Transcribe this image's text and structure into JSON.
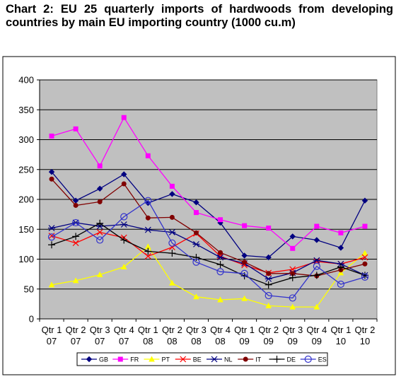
{
  "chart_data": {
    "type": "line",
    "title": "Chart 2: EU 25 quarterly imports of hardwoods from developing countries by main EU importing country (1000 cu.m)",
    "categories": [
      [
        "Qtr 1",
        "07"
      ],
      [
        "Qtr 2",
        "07"
      ],
      [
        "Qtr 3",
        "07"
      ],
      [
        "Qtr 4",
        "07"
      ],
      [
        "Qtr 1",
        "08"
      ],
      [
        "Qtr 2",
        "08"
      ],
      [
        "Qtr 3",
        "08"
      ],
      [
        "Qtr 4",
        "08"
      ],
      [
        "Qtr 1",
        "09"
      ],
      [
        "Qtr 2",
        "09"
      ],
      [
        "Qtr 3",
        "09"
      ],
      [
        "Qtr 4",
        "09"
      ],
      [
        "Qtr 1",
        "10"
      ],
      [
        "Qtr 2",
        "10"
      ]
    ],
    "ylim": [
      0,
      400
    ],
    "yticks": [
      "0",
      "50",
      "100",
      "150",
      "200",
      "250",
      "300",
      "350",
      "400"
    ],
    "grid": true,
    "plot_background": "#c0c0c0",
    "legend_position": "bottom",
    "series": [
      {
        "name": "GB",
        "color": "#000080",
        "marker": "diamond",
        "values": [
          246,
          198,
          218,
          242,
          194,
          209,
          195,
          161,
          106,
          103,
          138,
          132,
          119,
          198
        ]
      },
      {
        "name": "FR",
        "color": "#ff00ff",
        "marker": "square",
        "values": [
          306,
          318,
          256,
          337,
          273,
          222,
          178,
          166,
          156,
          152,
          118,
          155,
          144,
          155
        ]
      },
      {
        "name": "PT",
        "color": "#ffff00",
        "marker": "triangle",
        "values": [
          57,
          64,
          74,
          87,
          121,
          60,
          37,
          32,
          34,
          22,
          20,
          20,
          77,
          110
        ]
      },
      {
        "name": "BE",
        "color": "#ff0000",
        "marker": "x",
        "values": [
          139,
          127,
          145,
          136,
          105,
          120,
          143,
          105,
          90,
          77,
          83,
          96,
          92,
          103
        ]
      },
      {
        "name": "NL",
        "color": "#000080",
        "marker": "asterisk",
        "values": [
          152,
          161,
          155,
          158,
          149,
          145,
          125,
          103,
          93,
          67,
          77,
          98,
          92,
          73
        ]
      },
      {
        "name": "IT",
        "color": "#800000",
        "marker": "circle",
        "values": [
          234,
          190,
          196,
          226,
          169,
          170,
          144,
          111,
          95,
          76,
          76,
          72,
          82,
          92
        ]
      },
      {
        "name": "DE",
        "color": "#000000",
        "marker": "plus",
        "values": [
          124,
          138,
          160,
          132,
          113,
          110,
          103,
          91,
          72,
          57,
          69,
          73,
          87,
          73
        ]
      },
      {
        "name": "ES",
        "color": "#3333cc",
        "marker": "hollow-circle",
        "values": [
          137,
          161,
          132,
          171,
          198,
          127,
          95,
          79,
          76,
          39,
          35,
          88,
          58,
          70
        ]
      }
    ]
  }
}
